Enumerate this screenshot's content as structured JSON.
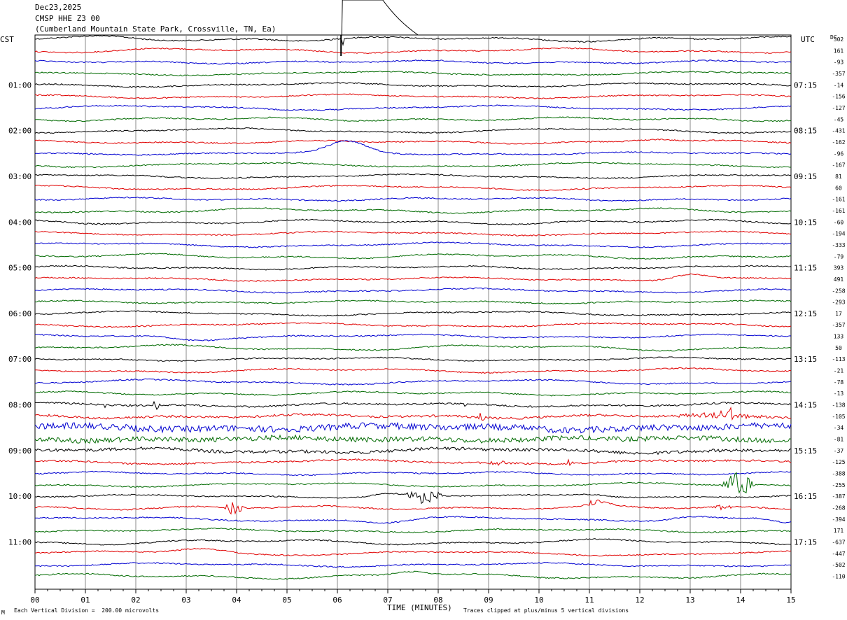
{
  "header": {
    "date": "Dec23,2025",
    "station": "CMSP HHE Z3 00",
    "location": "(Cumberland Mountain State Park, Crossville, TN, Ea)"
  },
  "timezones": {
    "left": "CST",
    "right": "UTC",
    "dc": "DC"
  },
  "footer": {
    "x_axis_label": "TIME (MINUTES)",
    "vertical_division": "Each Vertical Division =  200.00 microvolts",
    "clip_note": "Traces clipped at plus/minus 5 vertical divisions",
    "corner_mark": "M"
  },
  "colors": {
    "black": "#000000",
    "red": "#e00000",
    "blue": "#0000d0",
    "green": "#006a00",
    "grid": "#888888"
  },
  "chart_data": {
    "type": "line",
    "title": "CMSP HHE Z3 00",
    "xlabel": "TIME (MINUTES)",
    "x_ticks": [
      "00",
      "01",
      "02",
      "03",
      "04",
      "05",
      "06",
      "07",
      "08",
      "09",
      "10",
      "11",
      "12",
      "13",
      "14",
      "15"
    ],
    "xlim": [
      0,
      15
    ],
    "trace_colors": [
      "black",
      "red",
      "blue",
      "green"
    ],
    "cst_hour_labels": [
      "01:00",
      "02:00",
      "03:00",
      "04:00",
      "05:00",
      "06:00",
      "07:00",
      "08:00",
      "09:00",
      "10:00",
      "11:00"
    ],
    "utc_hour_labels": [
      "07:15",
      "08:15",
      "09:15",
      "10:15",
      "11:15",
      "12:15",
      "13:15",
      "14:15",
      "15:15",
      "16:15",
      "17:15"
    ],
    "dc_offsets": [
      302,
      161,
      -93,
      -357,
      -14,
      -156,
      -127,
      -45,
      -431,
      -162,
      -96,
      -167,
      81,
      60,
      -161,
      -161,
      -60,
      -194,
      -333,
      -79,
      393,
      491,
      -258,
      -293,
      17,
      -357,
      133,
      50,
      -113,
      -21,
      -78,
      -13,
      -138,
      -105,
      -34,
      -81,
      -37,
      -125,
      -388,
      -255,
      -387,
      -268,
      -394,
      171,
      -637,
      -447,
      -502,
      -110
    ]
  }
}
